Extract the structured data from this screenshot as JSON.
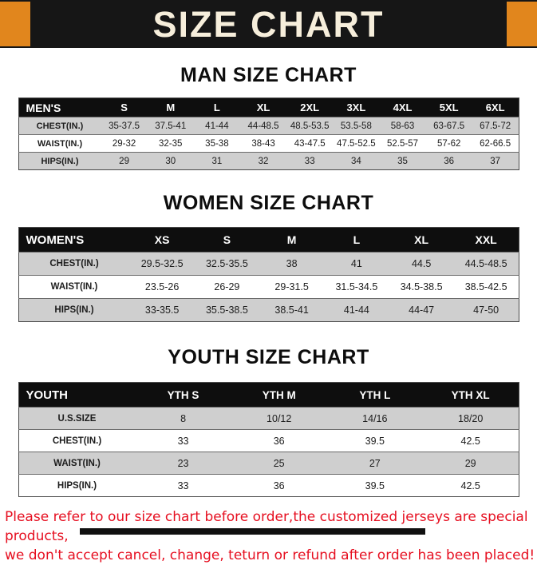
{
  "banner": {
    "title": "SIZE CHART"
  },
  "sections": [
    {
      "heading": "MAN SIZE CHART",
      "table": {
        "header": [
          "MEN'S",
          "S",
          "M",
          "L",
          "XL",
          "2XL",
          "3XL",
          "4XL",
          "5XL",
          "6XL"
        ],
        "rows": [
          [
            "CHEST(IN.)",
            "35-37.5",
            "37.5-41",
            "41-44",
            "44-48.5",
            "48.5-53.5",
            "53.5-58",
            "58-63",
            "63-67.5",
            "67.5-72"
          ],
          [
            "WAIST(IN.)",
            "29-32",
            "32-35",
            "35-38",
            "38-43",
            "43-47.5",
            "47.5-52.5",
            "52.5-57",
            "57-62",
            "62-66.5"
          ],
          [
            "HIPS(IN.)",
            "29",
            "30",
            "31",
            "32",
            "33",
            "34",
            "35",
            "36",
            "37"
          ]
        ]
      }
    },
    {
      "heading": "WOMEN SIZE CHART",
      "table": {
        "header": [
          "WOMEN'S",
          "XS",
          "S",
          "M",
          "L",
          "XL",
          "XXL"
        ],
        "rows": [
          [
            "CHEST(IN.)",
            "29.5-32.5",
            "32.5-35.5",
            "38",
            "41",
            "44.5",
            "44.5-48.5"
          ],
          [
            "WAIST(IN.)",
            "23.5-26",
            "26-29",
            "29-31.5",
            "31.5-34.5",
            "34.5-38.5",
            "38.5-42.5"
          ],
          [
            "HIPS(IN.)",
            "33-35.5",
            "35.5-38.5",
            "38.5-41",
            "41-44",
            "44-47",
            "47-50"
          ]
        ]
      }
    },
    {
      "heading": "YOUTH SIZE CHART",
      "table": {
        "header": [
          "YOUTH",
          "YTH S",
          "YTH M",
          "YTH L",
          "YTH XL"
        ],
        "rows": [
          [
            "U.S.SIZE",
            "8",
            "10/12",
            "14/16",
            "18/20"
          ],
          [
            "CHEST(IN.)",
            "33",
            "36",
            "39.5",
            "42.5"
          ],
          [
            "WAIST(IN.)",
            "23",
            "25",
            "27",
            "29"
          ],
          [
            "HIPS(IN.)",
            "33",
            "36",
            "39.5",
            "42.5"
          ]
        ]
      }
    }
  ],
  "footer": {
    "line1": "Please refer to our size chart before order,the customized jerseys are special products,",
    "line2": "we don't accept cancel, change, teturn or refund after order has been placed!"
  },
  "colors": {
    "accent_orange": "#e1861d",
    "banner_black": "#161616",
    "row_gray": "#cfcfcf",
    "footer_red": "#e60f20"
  }
}
